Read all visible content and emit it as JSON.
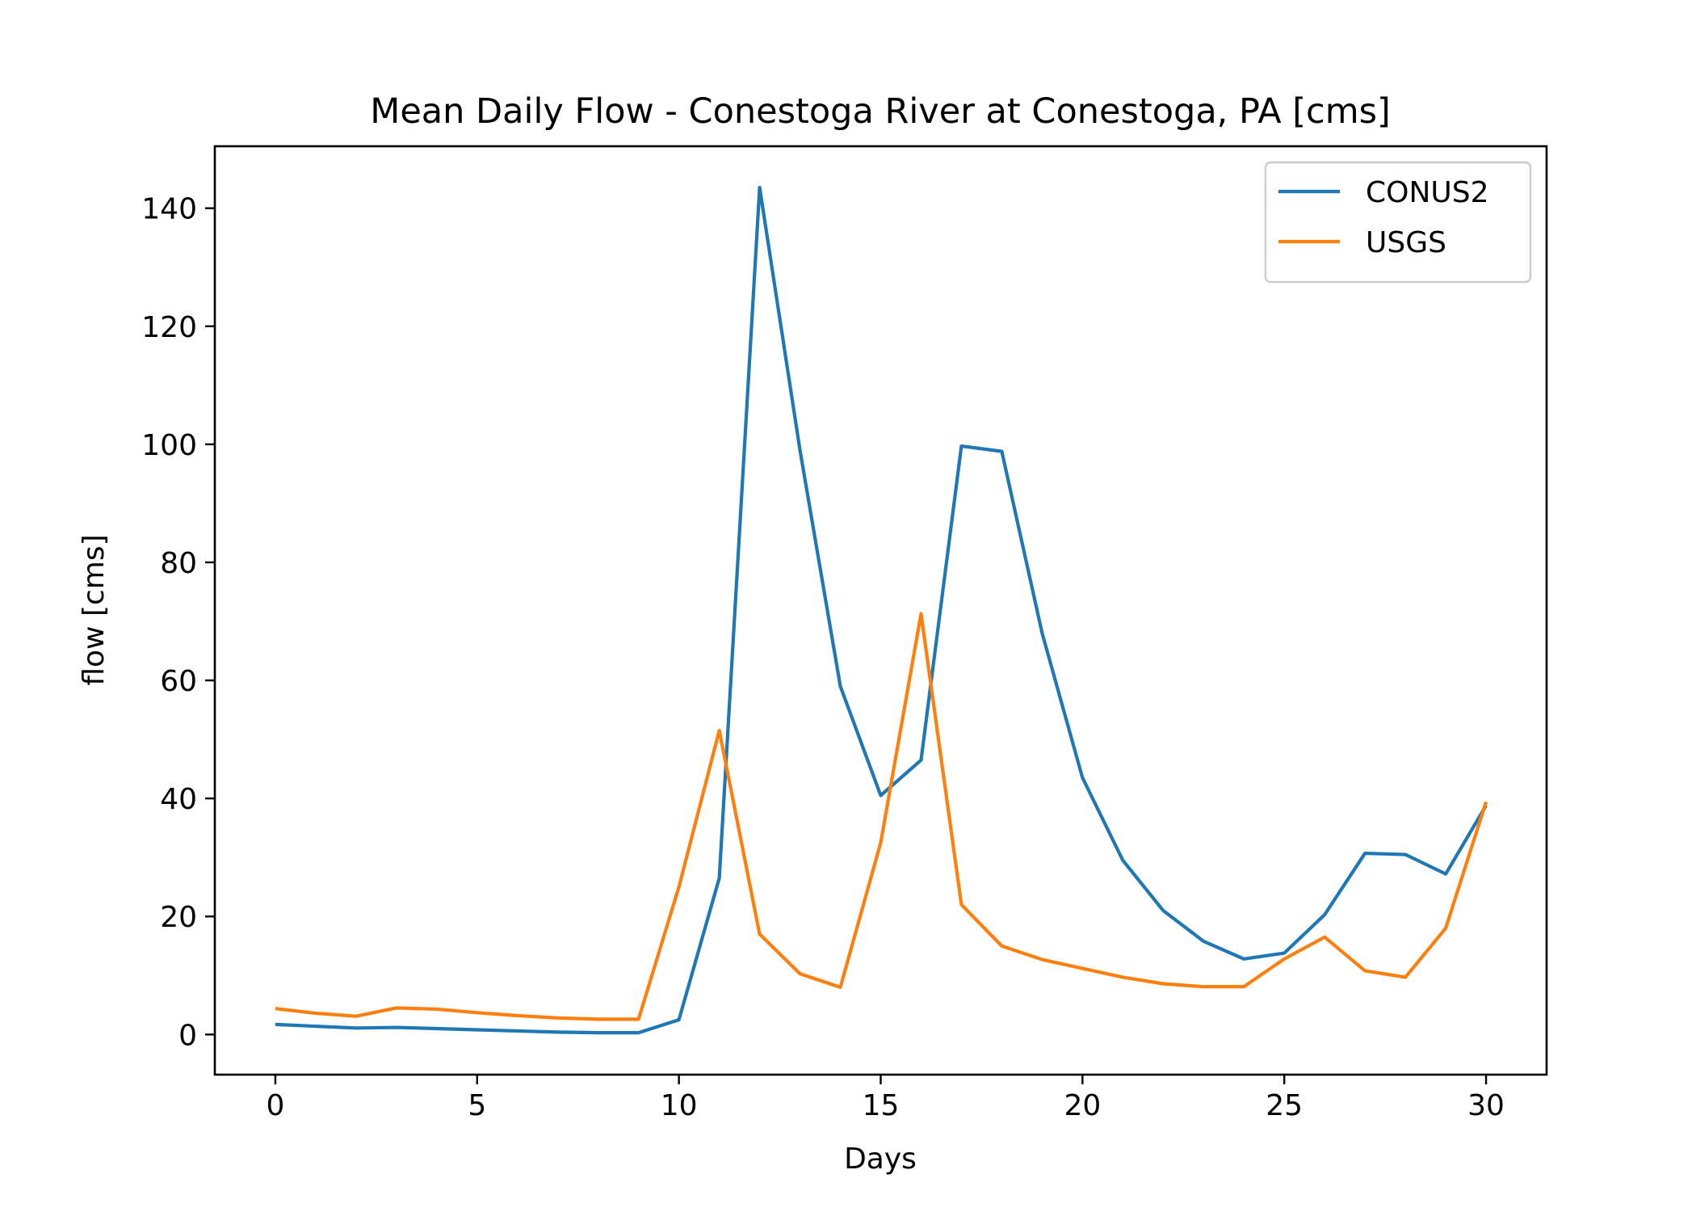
{
  "chart_data": {
    "type": "line",
    "title": "Mean Daily Flow - Conestoga River at Conestoga, PA [cms]",
    "xlabel": "Days",
    "ylabel": "flow [cms]",
    "xlim": [
      -1.5,
      31.5
    ],
    "ylim": [
      -6.8,
      150.5
    ],
    "xticks": [
      0,
      5,
      10,
      15,
      20,
      25,
      30
    ],
    "yticks": [
      0,
      20,
      40,
      60,
      80,
      100,
      120,
      140
    ],
    "grid": false,
    "legend": "top-right",
    "x": [
      0,
      1,
      2,
      3,
      4,
      5,
      6,
      7,
      8,
      9,
      10,
      11,
      12,
      13,
      14,
      15,
      16,
      17,
      18,
      19,
      20,
      21,
      22,
      23,
      24,
      25,
      26,
      27,
      28,
      29,
      30
    ],
    "series": [
      {
        "name": "CONUS2",
        "color": "#1f77b4",
        "values": [
          1.7,
          1.4,
          1.1,
          1.2,
          1.0,
          0.8,
          0.6,
          0.4,
          0.3,
          0.3,
          2.5,
          26.5,
          143.5,
          99.0,
          59.0,
          40.5,
          46.5,
          99.7,
          98.8,
          68.0,
          43.5,
          29.5,
          21.0,
          15.8,
          12.8,
          13.8,
          20.3,
          30.7,
          30.5,
          27.2,
          38.8
        ]
      },
      {
        "name": "USGS",
        "color": "#ff7f0e",
        "values": [
          4.4,
          3.6,
          3.1,
          4.5,
          4.3,
          3.7,
          3.2,
          2.8,
          2.6,
          2.6,
          25.0,
          51.5,
          17.0,
          10.3,
          8.0,
          32.5,
          71.3,
          22.0,
          15.0,
          12.7,
          11.2,
          9.7,
          8.6,
          8.1,
          8.1,
          12.8,
          16.5,
          10.8,
          9.7,
          18.0,
          39.4
        ]
      }
    ]
  }
}
